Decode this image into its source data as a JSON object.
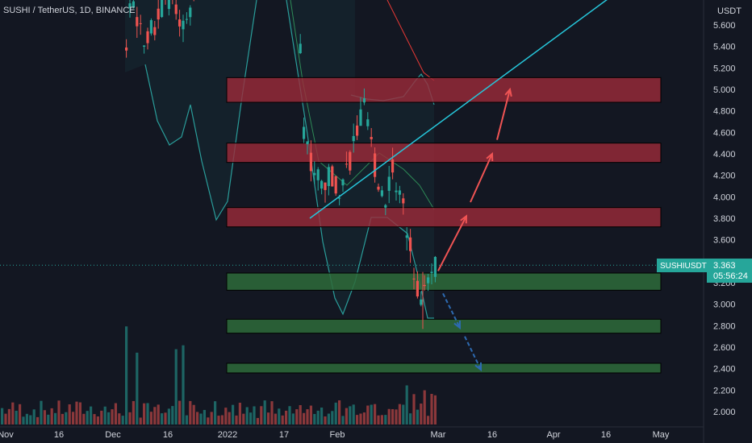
{
  "header": {
    "symbol_title": "SUSHI / TetherUS, 1D, BINANCE",
    "currency_label": "USDT",
    "price_tag_symbol": "SUSHIUSDT",
    "price_tag_value": "3.363",
    "price_tag_countdown": "05:56:24"
  },
  "colors": {
    "background": "#131722",
    "up": "#26a69a",
    "down": "#ef5350",
    "resistance_zone": "#9c2b3a",
    "support_zone": "#2e6b3a",
    "trendline": "#26c6da",
    "bands": "#2a9d9a",
    "upper_bound": "#e53935",
    "arrow_up": "#f05454",
    "arrow_down": "#2d6ab1"
  },
  "chart_data": {
    "type": "candlestick",
    "title": "SUSHI / TetherUS, 1D, BINANCE",
    "ylabel": "USDT",
    "ylim": [
      1.86,
      6.1
    ],
    "y_ticks": [
      "5.600",
      "5.400",
      "5.200",
      "5.000",
      "4.800",
      "4.600",
      "4.400",
      "4.200",
      "4.000",
      "3.800",
      "3.600",
      "3.400",
      "3.200",
      "3.000",
      "2.800",
      "2.600",
      "2.400",
      "2.200",
      "2.000"
    ],
    "x_ticks": [
      "Nov",
      "16",
      "Dec",
      "16",
      "2022",
      "17",
      "Feb",
      "Mar",
      "16",
      "Apr",
      "16",
      "May"
    ],
    "last_price": 3.363,
    "resistance_zones": [
      {
        "low": 4.88,
        "high": 5.11
      },
      {
        "low": 4.32,
        "high": 4.5
      },
      {
        "low": 3.72,
        "high": 3.9
      }
    ],
    "support_zones": [
      {
        "low": 3.13,
        "high": 3.29
      },
      {
        "low": 2.73,
        "high": 2.86
      },
      {
        "low": 2.36,
        "high": 2.45
      }
    ],
    "trendline": {
      "from": {
        "date": "2022-01-24",
        "price": 3.8
      },
      "to": {
        "date": "2022-05-12",
        "price": 6.1
      }
    },
    "projection_up": [
      {
        "from": 3.31,
        "to": 3.82
      },
      {
        "from": 3.95,
        "to": 4.4
      },
      {
        "from": 4.53,
        "to": 5.0
      }
    ],
    "projection_down": [
      {
        "from": 3.1,
        "to": 2.78
      },
      {
        "from": 2.7,
        "to": 2.39
      }
    ]
  }
}
